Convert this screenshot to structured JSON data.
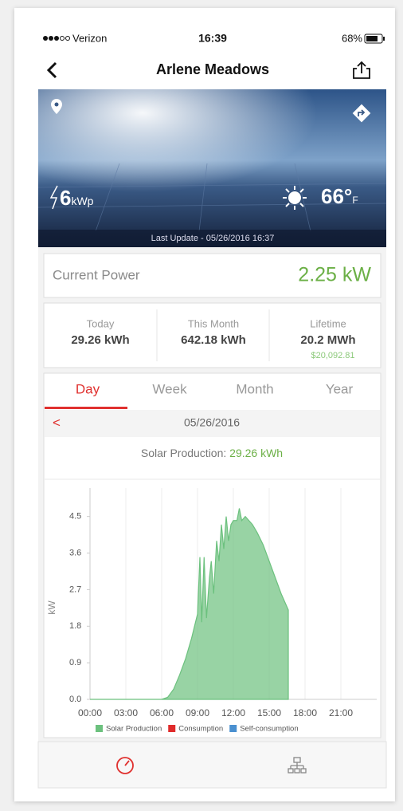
{
  "status": {
    "carrier": "Verizon",
    "time": "16:39",
    "battery": "68%"
  },
  "nav": {
    "title": "Arlene Meadows"
  },
  "banner": {
    "capacity_value": "6",
    "capacity_unit": "kWp",
    "temperature": "66°",
    "temperature_unit": "F",
    "last_update": "Last Update - 05/26/2016 16:37"
  },
  "current_power": {
    "label": "Current Power",
    "value": "2.25 kW"
  },
  "stats": [
    {
      "label": "Today",
      "value": "29.26 kWh"
    },
    {
      "label": "This Month",
      "value": "642.18 kWh"
    },
    {
      "label": "Lifetime",
      "value": "20.2 MWh",
      "sub": "$20,092.81"
    }
  ],
  "tabs": [
    "Day",
    "Week",
    "Month",
    "Year"
  ],
  "date_nav": {
    "prev": "<",
    "date": "05/26/2016"
  },
  "summary": {
    "label": "Solar Production:",
    "value": "29.26 kWh"
  },
  "chart_data": {
    "type": "area",
    "ylabel": "kW",
    "x": [
      0,
      6,
      6.5,
      7,
      7.5,
      8,
      8.5,
      9,
      9.2,
      9.35,
      9.55,
      9.75,
      10,
      10.15,
      10.35,
      10.6,
      10.8,
      11,
      11.2,
      11.4,
      11.6,
      11.8,
      12,
      12.3,
      12.5,
      12.7,
      13,
      13.3,
      13.6,
      14,
      14.5,
      15,
      15.5,
      16,
      16.6
    ],
    "series": [
      {
        "name": "Solar Production",
        "color": "#6cc17e",
        "values": [
          0,
          0,
          0.05,
          0.25,
          0.6,
          1.0,
          1.5,
          2.1,
          3.5,
          1.9,
          3.5,
          2.0,
          3.0,
          3.4,
          2.6,
          3.9,
          3.4,
          4.3,
          3.7,
          4.5,
          3.9,
          4.3,
          4.4,
          4.4,
          4.7,
          4.4,
          4.5,
          4.4,
          4.3,
          4.1,
          3.8,
          3.4,
          3.0,
          2.6,
          2.2
        ]
      },
      {
        "name": "Consumption",
        "color": "#e02b2b",
        "values": [
          null,
          null,
          null,
          null,
          null,
          null,
          null,
          null,
          null,
          null,
          null,
          null,
          null,
          null,
          null,
          null,
          null,
          null,
          null,
          null,
          null,
          null,
          null,
          null,
          null,
          null,
          null,
          null,
          null,
          null,
          null,
          null,
          null,
          null,
          null
        ]
      },
      {
        "name": "Self-consumption",
        "color": "#4a90d0",
        "values": [
          null,
          null,
          null,
          null,
          null,
          null,
          null,
          null,
          null,
          null,
          null,
          null,
          null,
          null,
          null,
          null,
          null,
          null,
          null,
          null,
          null,
          null,
          null,
          null,
          null,
          null,
          null,
          null,
          null,
          null,
          null,
          null,
          null,
          null,
          null
        ]
      }
    ],
    "xlim": [
      0,
      24
    ],
    "xticks": [
      {
        "value": 0,
        "label": "00:00"
      },
      {
        "value": 3,
        "label": "03:00"
      },
      {
        "value": 6,
        "label": "06:00"
      },
      {
        "value": 9,
        "label": "09:00"
      },
      {
        "value": 12,
        "label": "12:00"
      },
      {
        "value": 15,
        "label": "15:00"
      },
      {
        "value": 18,
        "label": "18:00"
      },
      {
        "value": 21,
        "label": "21:00"
      }
    ],
    "ylim": [
      0,
      5.2
    ],
    "yticks": [
      {
        "value": 0,
        "label": "0.0"
      },
      {
        "value": 0.9,
        "label": "0.9"
      },
      {
        "value": 1.8,
        "label": "1.8"
      },
      {
        "value": 2.7,
        "label": "2.7"
      },
      {
        "value": 3.6,
        "label": "3.6"
      },
      {
        "value": 4.5,
        "label": "4.5"
      }
    ],
    "grid": true
  }
}
